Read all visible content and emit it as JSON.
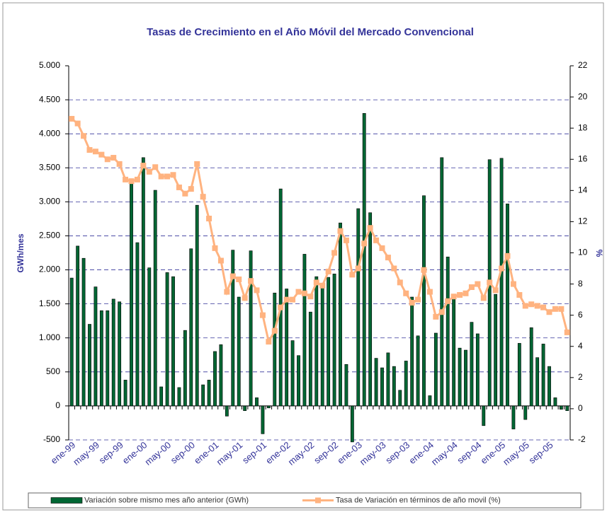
{
  "chart_data": {
    "type": "bar_line",
    "title": "Tasas de Crecimiento en el Año Móvil del Mercado Convencional",
    "y_label": "GWh/mes",
    "y2_label": "%",
    "categories": [
      "ene-99",
      null,
      null,
      null,
      "may-99",
      null,
      null,
      null,
      "sep-99",
      null,
      null,
      null,
      "ene-00",
      null,
      null,
      null,
      "may-00",
      null,
      null,
      null,
      "sep-00",
      null,
      null,
      null,
      "ene-01",
      null,
      null,
      null,
      "may-01",
      null,
      null,
      null,
      "sep-01",
      null,
      null,
      null,
      "ene-02",
      null,
      null,
      null,
      "may-02",
      null,
      null,
      null,
      "sep-02",
      null,
      null,
      null,
      "ene-03",
      null,
      null,
      null,
      "may-03",
      null,
      null,
      null,
      "sep-03",
      null,
      null,
      null,
      "ene-04",
      null,
      null,
      null,
      "may-04",
      null,
      null,
      null,
      "sep-04",
      null,
      null,
      null,
      "ene-05",
      null,
      null,
      null,
      "may-05",
      null,
      null,
      null,
      "sep-05",
      null,
      null,
      null
    ],
    "series": [
      {
        "name": "Variación sobre mismo mes año anterior (GWh)",
        "type": "bar",
        "color": "#006633",
        "values": [
          1880,
          2350,
          2170,
          1200,
          1750,
          1400,
          1400,
          1570,
          1530,
          380,
          3300,
          2400,
          3650,
          2030,
          3170,
          280,
          1960,
          1900,
          270,
          1110,
          2310,
          2950,
          310,
          380,
          800,
          900,
          -150,
          2290,
          1600,
          -70,
          2280,
          120,
          -410,
          -30,
          1660,
          3190,
          1720,
          960,
          740,
          2230,
          1380,
          1900,
          1750,
          1890,
          1940,
          2690,
          610,
          -530,
          2900,
          4300,
          2840,
          700,
          560,
          780,
          580,
          230,
          660,
          1600,
          1030,
          3090,
          150,
          1070,
          3650,
          2190,
          1600,
          850,
          820,
          1230,
          1060,
          -290,
          3620,
          1640,
          3640,
          2970,
          -340,
          920,
          -200,
          1150,
          710,
          910,
          580,
          120,
          -50,
          -70
        ]
      },
      {
        "name": "Tasa de Variación en términos de año movil (%)",
        "type": "line",
        "axis": "y2",
        "color": "#FFB380",
        "values": [
          18.6,
          18.3,
          17.5,
          16.6,
          16.5,
          16.3,
          16.0,
          16.1,
          15.7,
          14.7,
          14.6,
          14.7,
          15.6,
          15.2,
          15.5,
          14.9,
          14.9,
          15.0,
          14.2,
          13.8,
          14.1,
          15.7,
          13.6,
          12.2,
          10.3,
          9.5,
          7.5,
          8.5,
          8.3,
          7.1,
          8.2,
          7.6,
          6.0,
          4.3,
          5.0,
          6.5,
          7.0,
          7.0,
          7.5,
          7.4,
          7.2,
          8.1,
          7.9,
          8.8,
          10.0,
          11.4,
          10.8,
          8.6,
          9.0,
          10.6,
          11.6,
          10.8,
          10.3,
          9.7,
          9.0,
          8.1,
          7.4,
          6.8,
          7.0,
          8.9,
          7.5,
          5.9,
          6.2,
          6.9,
          7.2,
          7.3,
          7.4,
          7.8,
          8.0,
          7.1,
          8.1,
          7.6,
          9.0,
          9.8,
          8.0,
          7.3,
          6.6,
          6.7,
          6.6,
          6.5,
          6.2,
          6.4,
          6.4,
          4.9
        ]
      }
    ],
    "ylim": [
      -500,
      5000
    ],
    "yticks": [
      -500,
      0,
      500,
      {
        "value": 1000,
        "label": "1.000"
      },
      {
        "value": 1500,
        "label": "1.500"
      },
      {
        "value": 2000,
        "label": "2.000"
      },
      {
        "value": 2500,
        "label": "2.500"
      },
      {
        "value": 3000,
        "label": "3.000"
      },
      {
        "value": 3500,
        "label": "3.500"
      },
      {
        "value": 4000,
        "label": "4.000"
      },
      {
        "value": 4500,
        "label": "4.500"
      },
      {
        "value": 5000,
        "label": "5.000"
      }
    ],
    "y2lim": [
      -2,
      22
    ],
    "y2ticks": [
      -2,
      0,
      2,
      4,
      6,
      8,
      10,
      12,
      14,
      16,
      18,
      20,
      22
    ],
    "grid": true,
    "legend": "bottom"
  }
}
